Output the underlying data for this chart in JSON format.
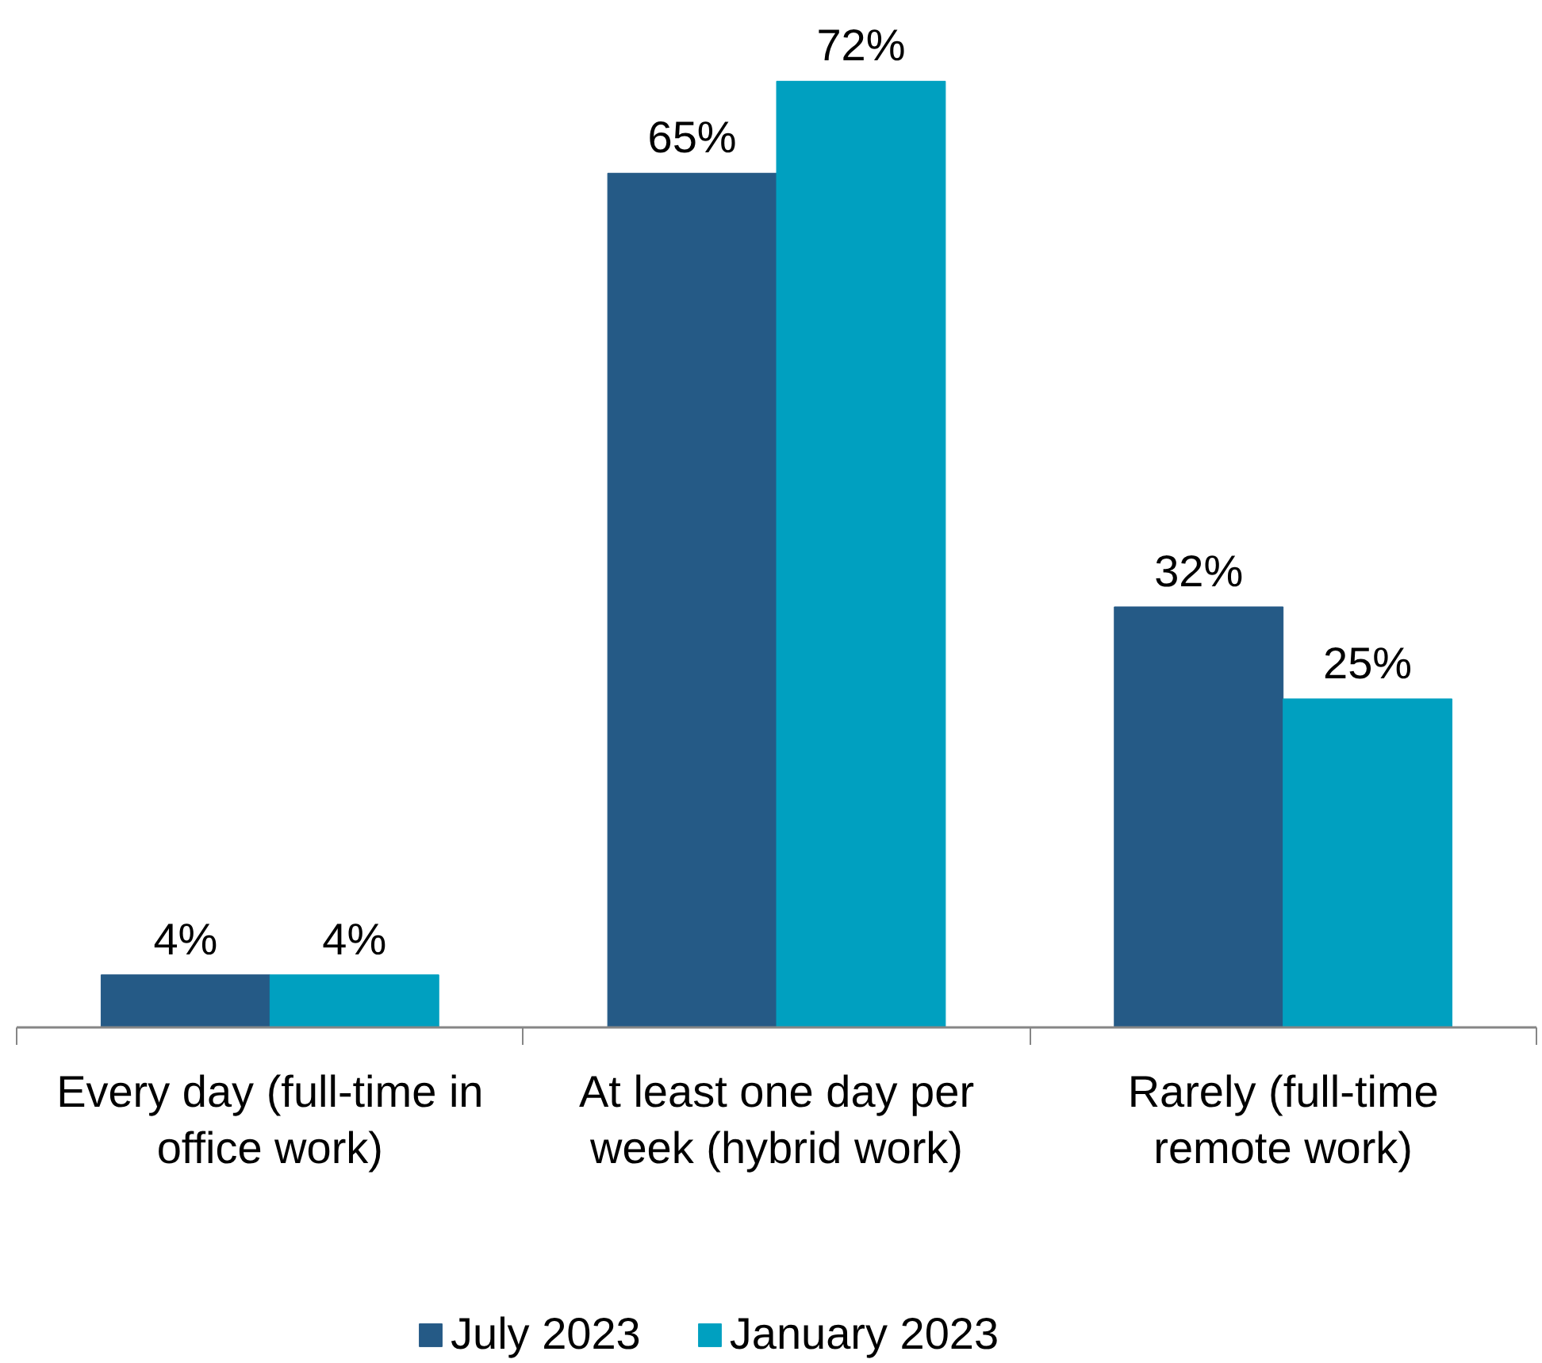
{
  "chart_data": {
    "type": "bar",
    "categories": [
      "Every day (full-time in office work)",
      "At least one day per week (hybrid work)",
      "Rarely (full-time remote work)"
    ],
    "series": [
      {
        "name": "July 2023",
        "color": "#255a86",
        "values": [
          4,
          65,
          32
        ],
        "value_labels": [
          "4%",
          "65%",
          "32%"
        ]
      },
      {
        "name": "January 2023",
        "color": "#00a0c0",
        "values": [
          4,
          72,
          25
        ],
        "value_labels": [
          "4%",
          "72%",
          "25%"
        ]
      }
    ],
    "legend": "bottom",
    "tick_labels": "x"
  }
}
